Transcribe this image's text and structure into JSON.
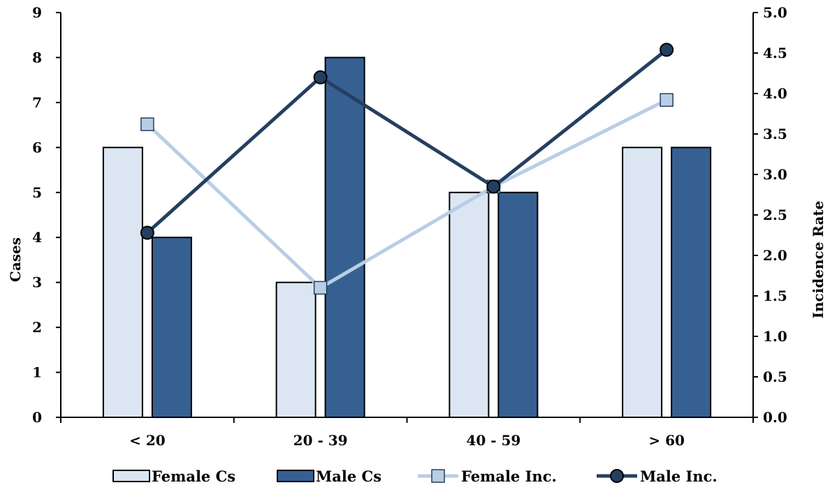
{
  "chart_data": {
    "type": "bar",
    "categories": [
      "< 20",
      "20 - 39",
      "40 - 59",
      "> 60"
    ],
    "bar_series": [
      {
        "name": "Female Cs",
        "values": [
          6,
          3,
          5,
          6
        ],
        "color": "#dce6f2"
      },
      {
        "name": "Male Cs",
        "values": [
          4,
          8,
          5,
          6
        ],
        "color": "#376092"
      }
    ],
    "line_series": [
      {
        "name": "Female Inc.",
        "values": [
          3.62,
          1.6,
          2.85,
          3.92
        ],
        "color": "#b9cde5",
        "marker": "square"
      },
      {
        "name": "Male Inc.",
        "values": [
          2.28,
          4.2,
          2.85,
          4.54
        ],
        "color": "#243f60",
        "marker": "circle"
      }
    ],
    "ylabel": "Cases",
    "y2label": "Incidence Rate",
    "ylim": [
      0,
      9
    ],
    "y2lim": [
      0,
      5
    ],
    "yticks": [
      "0",
      "1",
      "2",
      "3",
      "4",
      "5",
      "6",
      "7",
      "8",
      "9"
    ],
    "y2ticks": [
      "0.0",
      "0.5",
      "1.0",
      "1.5",
      "2.0",
      "2.5",
      "3.0",
      "3.5",
      "4.0",
      "4.5",
      "5.0"
    ],
    "grid": false,
    "legend_position": "bottom"
  }
}
